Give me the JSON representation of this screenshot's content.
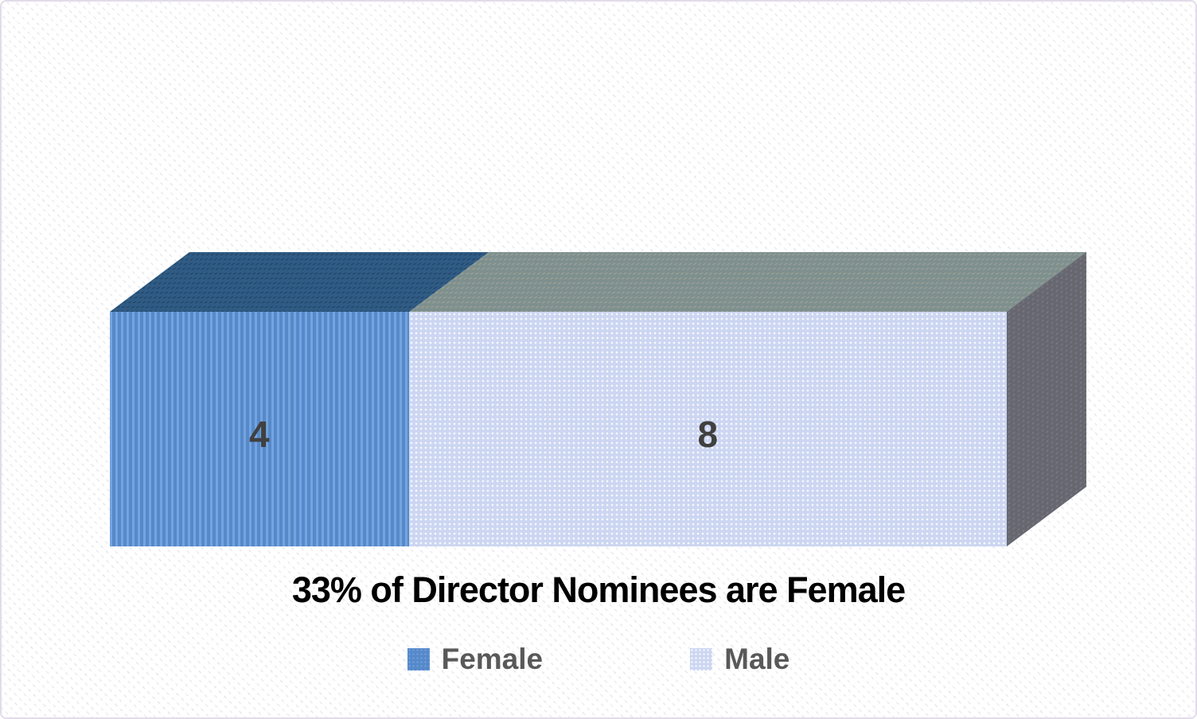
{
  "chart_data": {
    "type": "bar",
    "subtype": "horizontal-stacked-3d",
    "title": "33% of Director Nominees are Female",
    "categories": [
      "Director Nominees"
    ],
    "series": [
      {
        "name": "Female",
        "value": 4,
        "front_color": "#5689ca",
        "top_color": "#2f5b84"
      },
      {
        "name": "Male",
        "value": 8,
        "front_color": "#ccd6f2",
        "top_color": "#7e908e"
      }
    ],
    "data_labels": [
      "4",
      "8"
    ],
    "female_percent": "33%",
    "side_face_color": "#67676f",
    "data_label_color": "#404040",
    "legend": {
      "position": "bottom",
      "text_color": "#595959",
      "items": [
        "Female",
        "Male"
      ]
    },
    "axes": "none",
    "grid": "off"
  }
}
